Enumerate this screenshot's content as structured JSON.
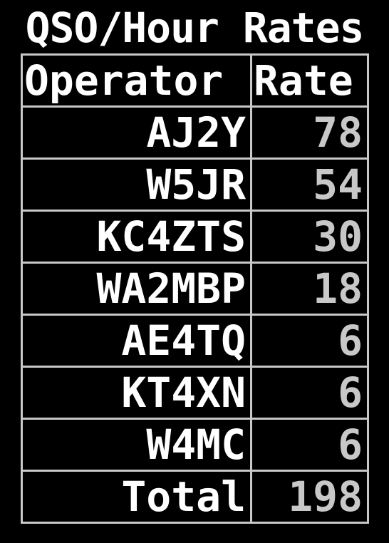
{
  "title": "QSO/Hour Rates",
  "columns": {
    "operator": "Operator",
    "rate": "Rate"
  },
  "rows": [
    {
      "operator": "AJ2Y",
      "rate": "78"
    },
    {
      "operator": "W5JR",
      "rate": "54"
    },
    {
      "operator": "KC4ZTS",
      "rate": "30"
    },
    {
      "operator": "WA2MBP",
      "rate": "18"
    },
    {
      "operator": "AE4TQ",
      "rate": "6"
    },
    {
      "operator": "KT4XN",
      "rate": "6"
    },
    {
      "operator": "W4MC",
      "rate": "6"
    }
  ],
  "total": {
    "label": "Total",
    "rate": "198"
  },
  "colors": {
    "background": "#000000",
    "text": "#ffffff",
    "rate_text": "#c8c8c8",
    "grid": "#c8c8c8"
  }
}
